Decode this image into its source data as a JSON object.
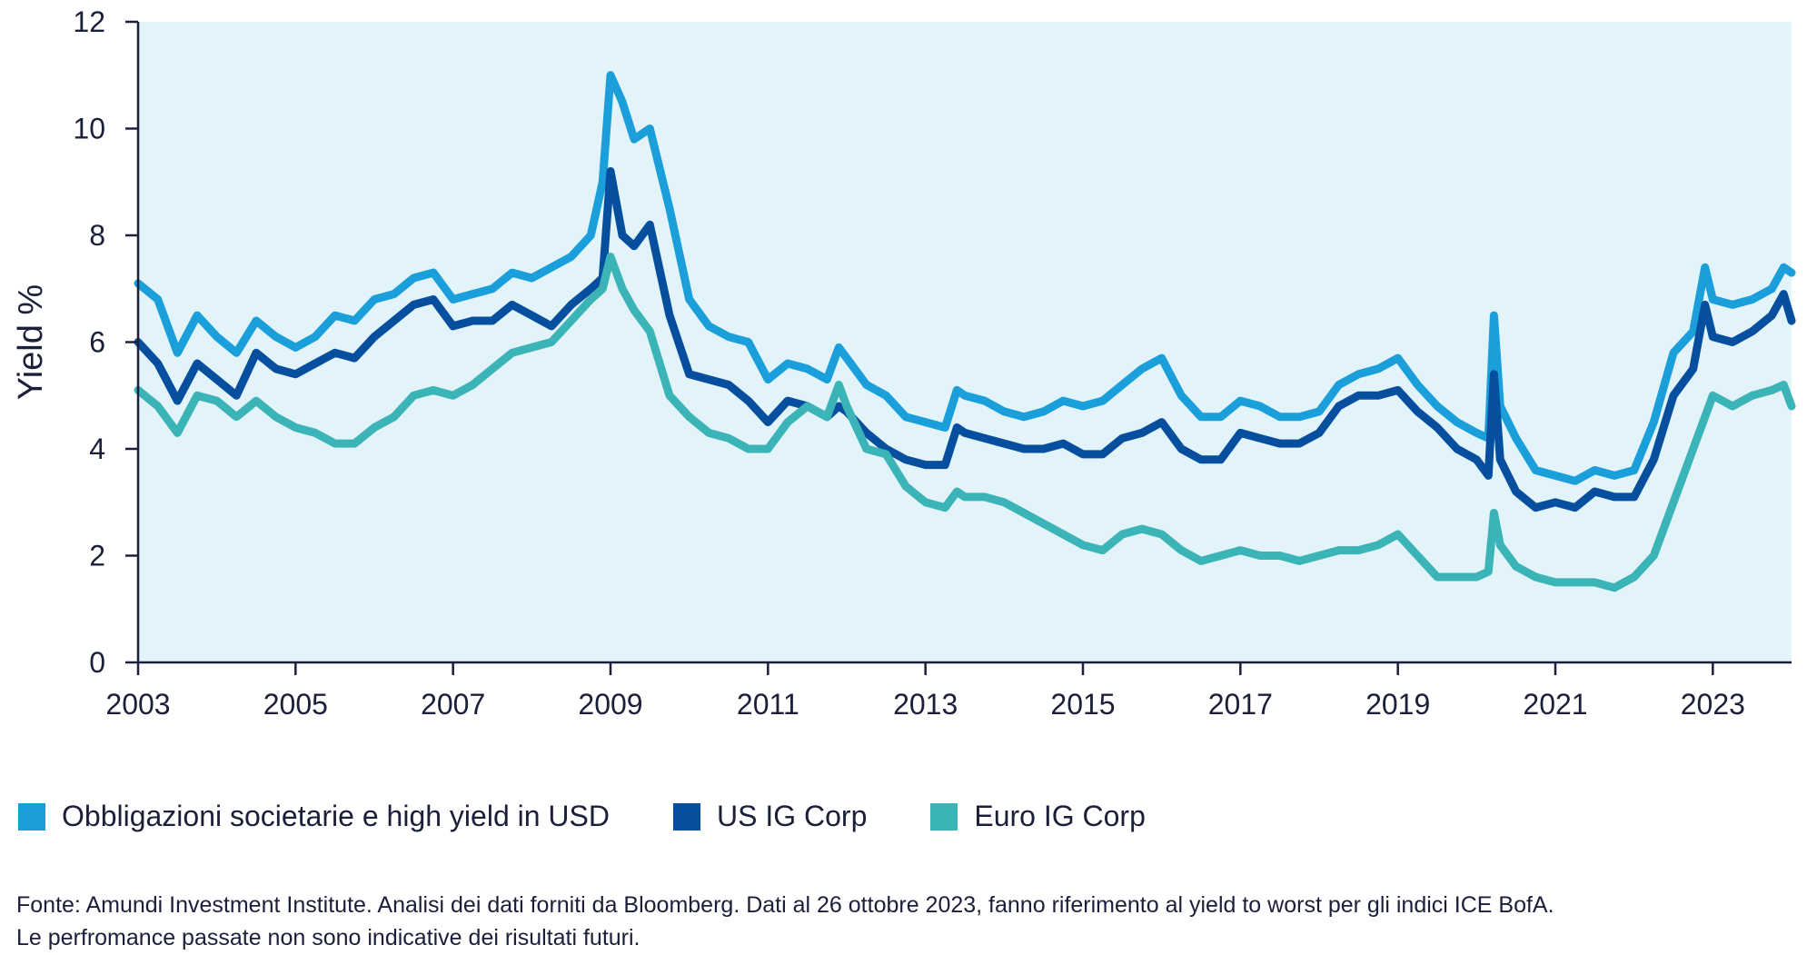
{
  "chart_data": {
    "type": "line",
    "title": "",
    "xlabel": "",
    "ylabel": "Yield %",
    "xlim": [
      2003,
      2024
    ],
    "ylim": [
      0,
      12
    ],
    "yticks": [
      0,
      2,
      4,
      6,
      8,
      10,
      12
    ],
    "xticks": [
      "2003",
      "2005",
      "2007",
      "2009",
      "2011",
      "2013",
      "2015",
      "2017",
      "2019",
      "2021",
      "2023"
    ],
    "grid": false,
    "legend_position": "bottom",
    "x": [
      2003.0,
      2003.25,
      2003.5,
      2003.75,
      2004.0,
      2004.25,
      2004.5,
      2004.75,
      2005.0,
      2005.25,
      2005.5,
      2005.75,
      2006.0,
      2006.25,
      2006.5,
      2006.75,
      2007.0,
      2007.25,
      2007.5,
      2007.75,
      2008.0,
      2008.25,
      2008.5,
      2008.75,
      2008.9,
      2009.0,
      2009.15,
      2009.3,
      2009.5,
      2009.75,
      2010.0,
      2010.25,
      2010.5,
      2010.75,
      2011.0,
      2011.25,
      2011.5,
      2011.75,
      2011.9,
      2012.0,
      2012.25,
      2012.5,
      2012.75,
      2013.0,
      2013.25,
      2013.4,
      2013.5,
      2013.75,
      2014.0,
      2014.25,
      2014.5,
      2014.75,
      2015.0,
      2015.25,
      2015.5,
      2015.75,
      2016.0,
      2016.25,
      2016.5,
      2016.75,
      2017.0,
      2017.25,
      2017.5,
      2017.75,
      2018.0,
      2018.25,
      2018.5,
      2018.75,
      2019.0,
      2019.25,
      2019.5,
      2019.75,
      2020.0,
      2020.15,
      2020.22,
      2020.3,
      2020.5,
      2020.75,
      2021.0,
      2021.25,
      2021.5,
      2021.75,
      2022.0,
      2022.25,
      2022.5,
      2022.75,
      2022.9,
      2023.0,
      2023.25,
      2023.5,
      2023.75,
      2023.9,
      2024.0
    ],
    "series": [
      {
        "name": "Obbligazioni societarie e high yield in USD",
        "color": "#1a9fdb",
        "values": [
          7.1,
          6.8,
          5.8,
          6.5,
          6.1,
          5.8,
          6.4,
          6.1,
          5.9,
          6.1,
          6.5,
          6.4,
          6.8,
          6.9,
          7.2,
          7.3,
          6.8,
          6.9,
          7.0,
          7.3,
          7.2,
          7.4,
          7.6,
          8.0,
          9.0,
          11.0,
          10.5,
          9.8,
          10.0,
          8.5,
          6.8,
          6.3,
          6.1,
          6.0,
          5.3,
          5.6,
          5.5,
          5.3,
          5.9,
          5.7,
          5.2,
          5.0,
          4.6,
          4.5,
          4.4,
          5.1,
          5.0,
          4.9,
          4.7,
          4.6,
          4.7,
          4.9,
          4.8,
          4.9,
          5.2,
          5.5,
          5.7,
          5.0,
          4.6,
          4.6,
          4.9,
          4.8,
          4.6,
          4.6,
          4.7,
          5.2,
          5.4,
          5.5,
          5.7,
          5.2,
          4.8,
          4.5,
          4.3,
          4.2,
          6.5,
          4.8,
          4.2,
          3.6,
          3.5,
          3.4,
          3.6,
          3.5,
          3.6,
          4.5,
          5.8,
          6.2,
          7.4,
          6.8,
          6.7,
          6.8,
          7.0,
          7.4,
          7.3
        ]
      },
      {
        "name": "US IG Corp",
        "color": "#064f9f",
        "values": [
          6.0,
          5.6,
          4.9,
          5.6,
          5.3,
          5.0,
          5.8,
          5.5,
          5.4,
          5.6,
          5.8,
          5.7,
          6.1,
          6.4,
          6.7,
          6.8,
          6.3,
          6.4,
          6.4,
          6.7,
          6.5,
          6.3,
          6.7,
          7.0,
          7.2,
          9.2,
          8.0,
          7.8,
          8.2,
          6.5,
          5.4,
          5.3,
          5.2,
          4.9,
          4.5,
          4.9,
          4.8,
          4.6,
          4.8,
          4.7,
          4.3,
          4.0,
          3.8,
          3.7,
          3.7,
          4.4,
          4.3,
          4.2,
          4.1,
          4.0,
          4.0,
          4.1,
          3.9,
          3.9,
          4.2,
          4.3,
          4.5,
          4.0,
          3.8,
          3.8,
          4.3,
          4.2,
          4.1,
          4.1,
          4.3,
          4.8,
          5.0,
          5.0,
          5.1,
          4.7,
          4.4,
          4.0,
          3.8,
          3.5,
          5.4,
          3.8,
          3.2,
          2.9,
          3.0,
          2.9,
          3.2,
          3.1,
          3.1,
          3.8,
          5.0,
          5.5,
          6.7,
          6.1,
          6.0,
          6.2,
          6.5,
          6.9,
          6.4
        ]
      },
      {
        "name": "Euro IG Corp",
        "color": "#3bb4b7",
        "values": [
          5.1,
          4.8,
          4.3,
          5.0,
          4.9,
          4.6,
          4.9,
          4.6,
          4.4,
          4.3,
          4.1,
          4.1,
          4.4,
          4.6,
          5.0,
          5.1,
          5.0,
          5.2,
          5.5,
          5.8,
          5.9,
          6.0,
          6.4,
          6.8,
          7.0,
          7.6,
          7.0,
          6.6,
          6.2,
          5.0,
          4.6,
          4.3,
          4.2,
          4.0,
          4.0,
          4.5,
          4.8,
          4.6,
          5.2,
          4.8,
          4.0,
          3.9,
          3.3,
          3.0,
          2.9,
          3.2,
          3.1,
          3.1,
          3.0,
          2.8,
          2.6,
          2.4,
          2.2,
          2.1,
          2.4,
          2.5,
          2.4,
          2.1,
          1.9,
          2.0,
          2.1,
          2.0,
          2.0,
          1.9,
          2.0,
          2.1,
          2.1,
          2.2,
          2.4,
          2.0,
          1.6,
          1.6,
          1.6,
          1.7,
          2.8,
          2.2,
          1.8,
          1.6,
          1.5,
          1.5,
          1.5,
          1.4,
          1.6,
          2.0,
          3.0,
          4.0,
          4.6,
          5.0,
          4.8,
          5.0,
          5.1,
          5.2,
          4.8
        ]
      }
    ]
  },
  "source_note": {
    "line1": "Fonte: Amundi Investment Institute. Analisi dei dati forniti da Bloomberg. Dati al 26 ottobre 2023, fanno riferimento al yield to worst per gli indici ICE BofA.",
    "line2": "Le perfromance passate non sono indicative dei risultati futuri."
  }
}
